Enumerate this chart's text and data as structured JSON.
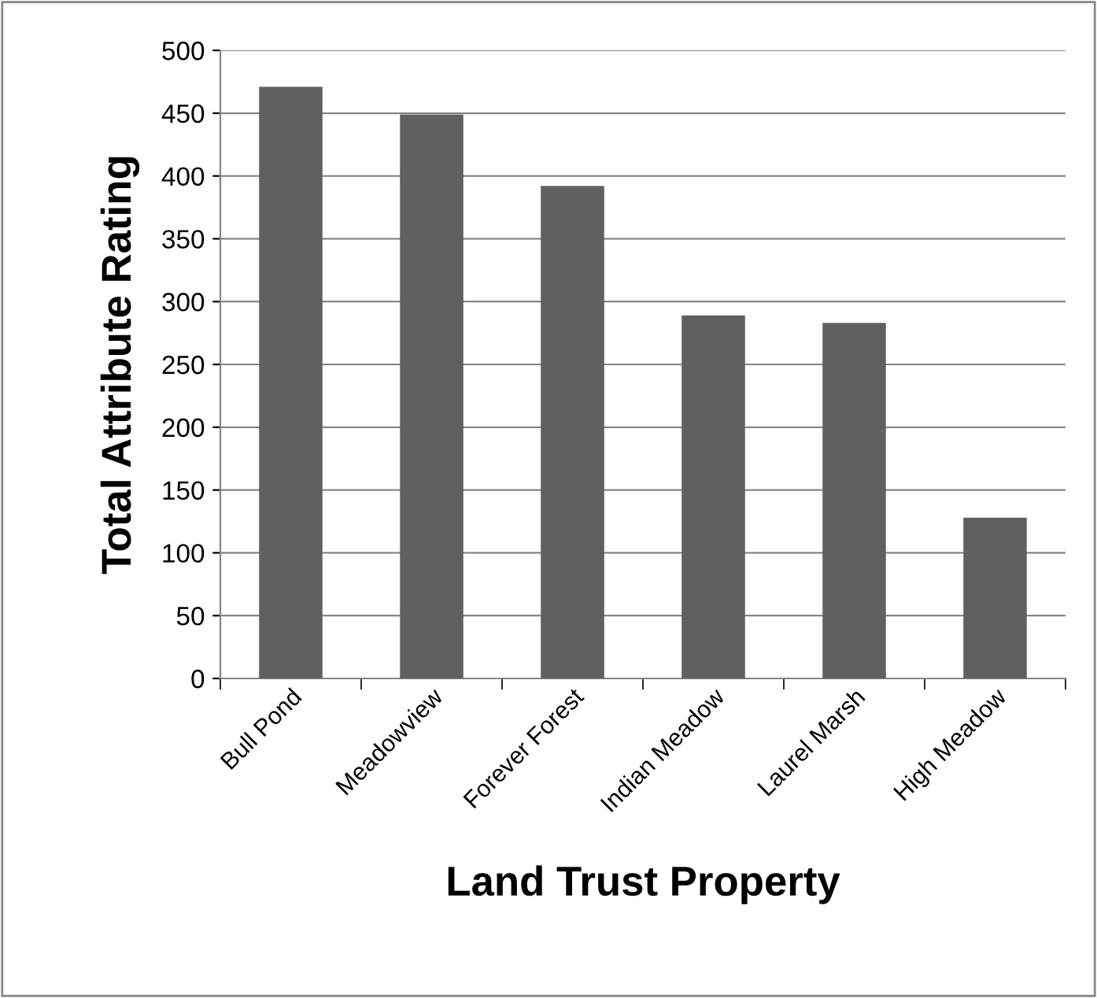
{
  "chart_data": {
    "type": "bar",
    "xlabel": "Land Trust Property",
    "ylabel": "Total Attribute Rating",
    "categories": [
      "Bull Pond",
      "Meadowview",
      "Forever Forest",
      "Indian Meadow",
      "Laurel Marsh",
      "High Meadow"
    ],
    "values": [
      471,
      449,
      392,
      289,
      283,
      128
    ],
    "color": "#606060",
    "ylim": [
      0,
      500
    ],
    "yticks": [
      0,
      50,
      100,
      150,
      200,
      250,
      300,
      350,
      400,
      450,
      500
    ],
    "grid": "y"
  }
}
